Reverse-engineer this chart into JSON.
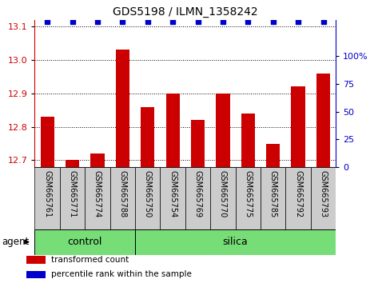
{
  "title": "GDS5198 / ILMN_1358242",
  "samples": [
    "GSM665761",
    "GSM665771",
    "GSM665774",
    "GSM665788",
    "GSM665750",
    "GSM665754",
    "GSM665769",
    "GSM665770",
    "GSM665775",
    "GSM665785",
    "GSM665792",
    "GSM665793"
  ],
  "values": [
    12.83,
    12.7,
    12.72,
    13.03,
    12.86,
    12.9,
    12.82,
    12.9,
    12.84,
    12.75,
    12.92,
    12.96
  ],
  "bar_color": "#cc0000",
  "dot_color": "#0000cc",
  "ylim_left": [
    12.68,
    13.12
  ],
  "ylim_right": [
    0,
    133
  ],
  "yticks_left": [
    12.7,
    12.8,
    12.9,
    13.0,
    13.1
  ],
  "yticks_right": [
    0,
    25,
    50,
    75,
    100
  ],
  "ytick_labels_right": [
    "0",
    "25",
    "50",
    "75",
    "100%"
  ],
  "groups": [
    {
      "label": "control",
      "start": 0,
      "end": 4,
      "color": "#77dd77"
    },
    {
      "label": "silica",
      "start": 4,
      "end": 12,
      "color": "#77dd77"
    }
  ],
  "group_row_label": "agent",
  "legend_items": [
    {
      "color": "#cc0000",
      "label": "transformed count"
    },
    {
      "color": "#0000cc",
      "label": "percentile rank within the sample"
    }
  ],
  "bar_width": 0.55,
  "tick_label_color_left": "#cc0000",
  "tick_label_color_right": "#0000cc",
  "label_fontsize": 7,
  "group_fontsize": 9,
  "title_fontsize": 10
}
